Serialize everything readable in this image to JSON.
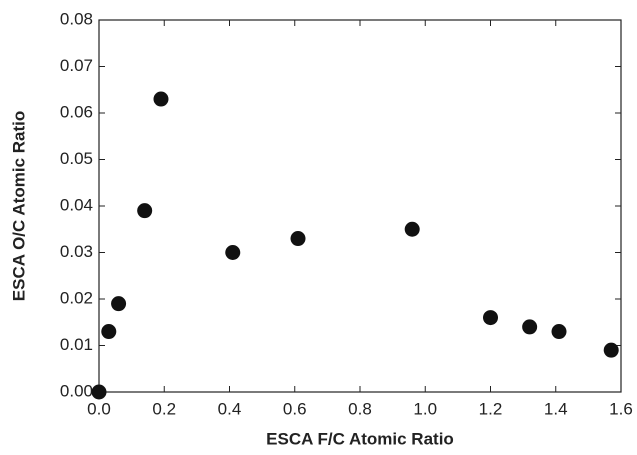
{
  "chart_data": {
    "type": "scatter",
    "x_label": "ESCA F/C Atomic Ratio",
    "y_label": "ESCA O/C Atomic Ratio",
    "x": [
      0.0,
      0.03,
      0.06,
      0.14,
      0.19,
      0.41,
      0.61,
      0.96,
      1.2,
      1.32,
      1.41,
      1.57
    ],
    "values": [
      0.0,
      0.013,
      0.019,
      0.039,
      0.063,
      0.03,
      0.033,
      0.035,
      0.016,
      0.014,
      0.013,
      0.009
    ],
    "color": "#111111",
    "xlim": [
      0,
      1.6
    ],
    "ylim": [
      0,
      0.08
    ],
    "xticks": [
      {
        "value": 0,
        "label": "0.0"
      },
      0.2,
      0.4,
      0.6,
      0.8,
      {
        "value": 1,
        "label": "1.0"
      },
      1.2,
      1.4,
      1.6
    ],
    "yticks": [
      {
        "value": 0,
        "label": "0.00"
      },
      0.01,
      0.02,
      0.03,
      0.04,
      0.05,
      0.06,
      0.07,
      0.08
    ],
    "grid": false
  }
}
